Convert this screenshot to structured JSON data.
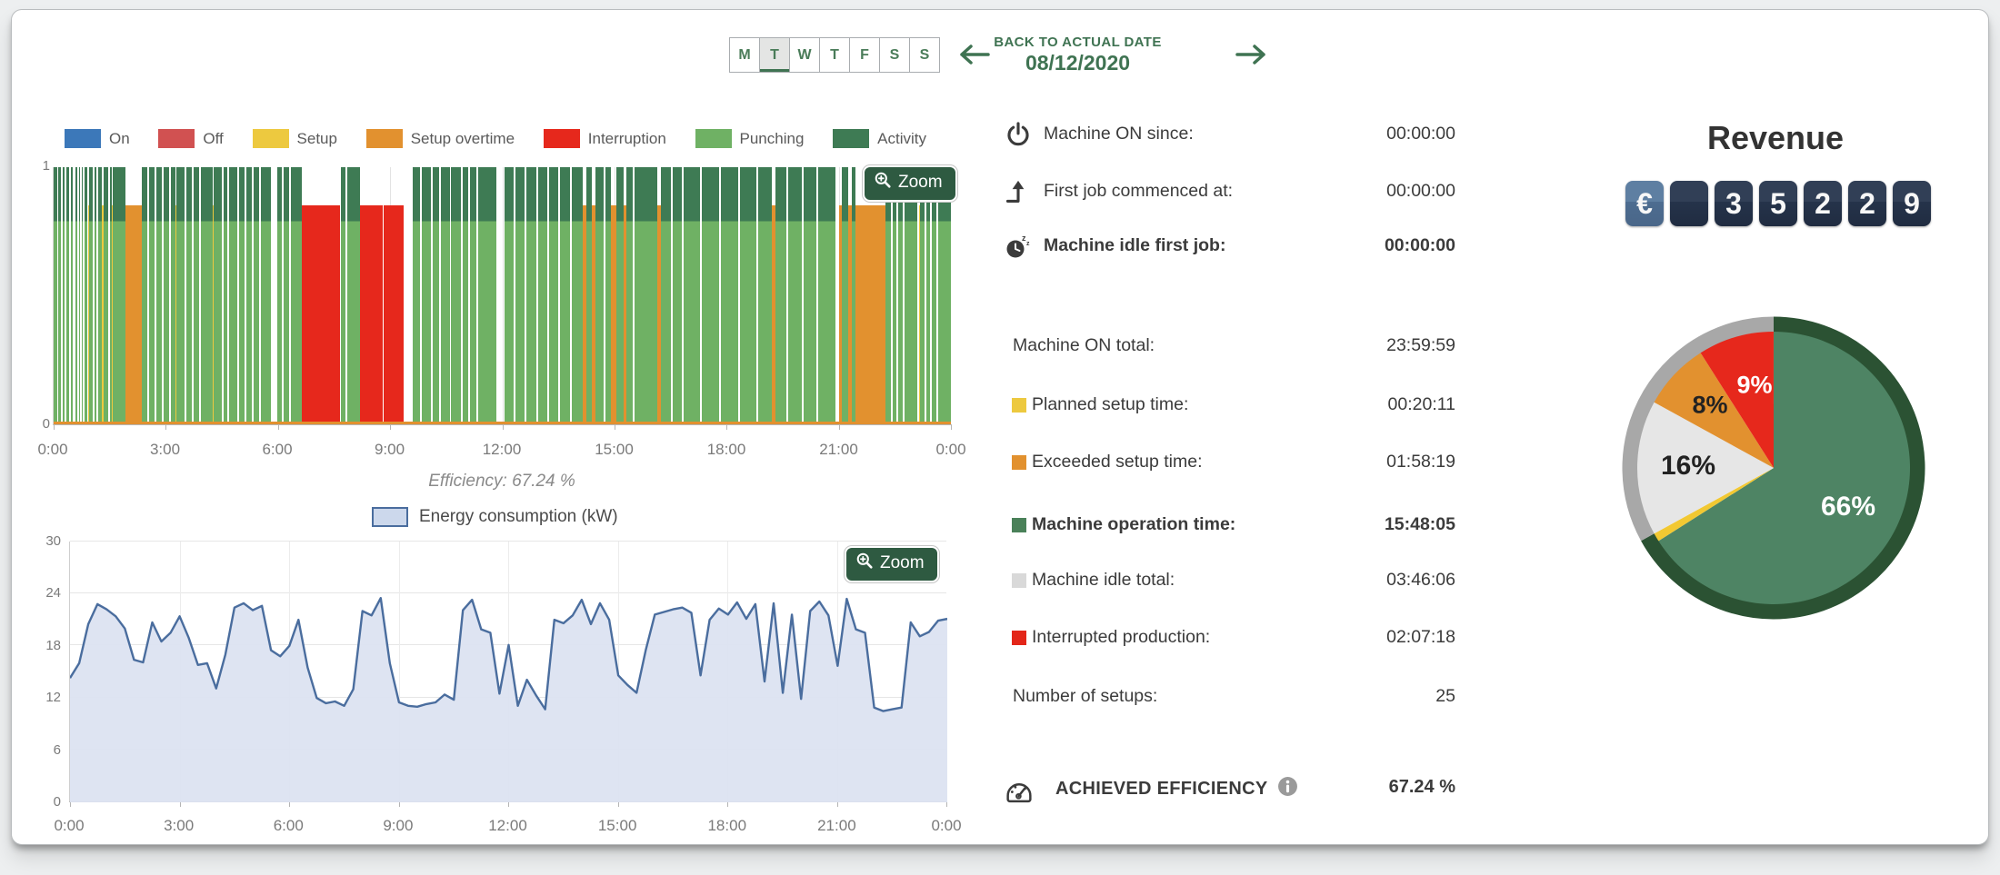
{
  "header": {
    "days": [
      "M",
      "T",
      "W",
      "T",
      "F",
      "S",
      "S"
    ],
    "active_day_index": 1,
    "back_to_actual": "BACK TO ACTUAL DATE",
    "date": "08/12/2020"
  },
  "timeline": {
    "zoom_label": "Zoom",
    "efficiency_caption": "Efficiency: 67.24 %"
  },
  "energy": {
    "zoom_label": "Zoom",
    "legend_label": "Energy consumption (kW)"
  },
  "stats": {
    "rows": [
      {
        "icon": "power-icon",
        "label": "Machine ON since:",
        "value": "00:00:00",
        "bold": false
      },
      {
        "icon": "first-job-icon",
        "label": "First job commenced at:",
        "value": "00:00:00",
        "bold": false
      },
      {
        "icon": "idle-clock-icon",
        "label": "Machine idle first job:",
        "value": "00:00:00",
        "bold": true
      },
      {
        "label": "Machine ON total:",
        "value": "23:59:59",
        "bold": false
      },
      {
        "swatch": "#edc93f",
        "label": "Planned setup time:",
        "value": "00:20:11",
        "bold": false
      },
      {
        "swatch": "#e2912f",
        "label": "Exceeded setup time:",
        "value": "01:58:19",
        "bold": false
      },
      {
        "swatch": "#4a8159",
        "label": "Machine operation time:",
        "value": "15:48:05",
        "bold": true
      },
      {
        "swatch": "#d9d9d9",
        "label": "Machine idle total:",
        "value": "03:46:06",
        "bold": false
      },
      {
        "swatch": "#e32619",
        "label": "Interrupted production:",
        "value": "02:07:18",
        "bold": false
      },
      {
        "label": "Number of setups:",
        "value": "25",
        "bold": false
      }
    ],
    "efficiency": {
      "label": "ACHIEVED EFFICIENCY",
      "value": "67.24 %"
    }
  },
  "revenue": {
    "title": "Revenue",
    "counter": [
      "€",
      "",
      "3",
      "5",
      "2",
      "2",
      "9"
    ]
  },
  "chart_data": [
    {
      "id": "machine-state-timeline",
      "type": "timeline-bar",
      "x_ticks": [
        "0:00",
        "3:00",
        "6:00",
        "9:00",
        "12:00",
        "15:00",
        "18:00",
        "21:00",
        "0:00"
      ],
      "x_range_hours": [
        0,
        24
      ],
      "y_ticks": [
        "1",
        "0"
      ],
      "legend": [
        {
          "label": "On",
          "color": "#3c78b9"
        },
        {
          "label": "Off",
          "color": "#d15151"
        },
        {
          "label": "Setup",
          "color": "#edc93f"
        },
        {
          "label": "Setup overtime",
          "color": "#e2912f"
        },
        {
          "label": "Interruption",
          "color": "#e6281c"
        },
        {
          "label": "Punching",
          "color": "#6fb164"
        },
        {
          "label": "Activity",
          "color": "#3e7b54"
        }
      ],
      "segment_kinds": {
        "g": "punching+activity",
        "r": "interruption",
        "o": "setup-overtime",
        "y": "setup",
        "w": "idle-gap"
      },
      "segments": [
        [
          0.0,
          0.1,
          "g"
        ],
        [
          0.1,
          0.13,
          "w"
        ],
        [
          0.13,
          0.55,
          "g"
        ],
        [
          0.55,
          0.58,
          "w"
        ],
        [
          0.58,
          0.9,
          "g"
        ],
        [
          0.9,
          0.93,
          "w"
        ],
        [
          0.93,
          0.96,
          "y"
        ],
        [
          0.96,
          1.3,
          "g"
        ],
        [
          1.3,
          1.33,
          "y"
        ],
        [
          1.33,
          1.55,
          "g"
        ],
        [
          1.55,
          1.58,
          "y"
        ],
        [
          1.58,
          1.93,
          "g"
        ],
        [
          1.93,
          2.35,
          "o"
        ],
        [
          2.35,
          3.25,
          "g"
        ],
        [
          3.25,
          3.28,
          "y"
        ],
        [
          3.28,
          4.25,
          "g"
        ],
        [
          4.25,
          4.28,
          "y"
        ],
        [
          4.28,
          5.8,
          "g"
        ],
        [
          5.8,
          5.97,
          "w"
        ],
        [
          5.97,
          6.65,
          "g"
        ],
        [
          6.65,
          7.65,
          "r"
        ],
        [
          7.65,
          7.68,
          "w"
        ],
        [
          7.68,
          8.2,
          "g"
        ],
        [
          8.2,
          8.8,
          "r"
        ],
        [
          8.8,
          8.83,
          "w"
        ],
        [
          8.83,
          9.35,
          "r"
        ],
        [
          9.35,
          9.6,
          "w"
        ],
        [
          9.6,
          10.6,
          "g"
        ],
        [
          10.6,
          10.63,
          "w"
        ],
        [
          10.63,
          11.85,
          "g"
        ],
        [
          11.85,
          12.05,
          "w"
        ],
        [
          12.05,
          14.15,
          "g"
        ],
        [
          14.15,
          14.25,
          "o"
        ],
        [
          14.25,
          14.4,
          "g"
        ],
        [
          14.4,
          14.5,
          "o"
        ],
        [
          14.5,
          14.9,
          "g"
        ],
        [
          14.9,
          15.05,
          "o"
        ],
        [
          15.05,
          15.25,
          "g"
        ],
        [
          15.25,
          15.32,
          "o"
        ],
        [
          15.32,
          16.15,
          "g"
        ],
        [
          16.15,
          16.25,
          "o"
        ],
        [
          16.25,
          19.2,
          "g"
        ],
        [
          19.2,
          19.3,
          "o"
        ],
        [
          19.3,
          20.9,
          "g"
        ],
        [
          20.9,
          21.0,
          "w"
        ],
        [
          21.0,
          21.08,
          "o"
        ],
        [
          21.08,
          21.25,
          "g"
        ],
        [
          21.25,
          21.35,
          "o"
        ],
        [
          21.35,
          21.45,
          "g"
        ],
        [
          21.45,
          22.25,
          "o"
        ],
        [
          22.25,
          22.55,
          "g"
        ],
        [
          22.55,
          22.58,
          "w"
        ],
        [
          22.58,
          23.1,
          "g"
        ],
        [
          23.1,
          23.15,
          "w"
        ],
        [
          23.15,
          23.18,
          "y"
        ],
        [
          23.18,
          23.45,
          "g"
        ],
        [
          23.45,
          23.48,
          "w"
        ],
        [
          23.48,
          24.0,
          "g"
        ]
      ],
      "gap_lines_hours": [
        0.2,
        0.3,
        0.42,
        0.5,
        0.63,
        0.7,
        0.78,
        1.05,
        1.15,
        1.45,
        2.5,
        2.7,
        2.9,
        3.1,
        3.5,
        3.7,
        3.9,
        4.5,
        4.65,
        4.9,
        5.1,
        5.3,
        5.5,
        6.1,
        6.3,
        7.8,
        9.8,
        10.1,
        10.3,
        10.9,
        11.1,
        11.3,
        12.3,
        12.6,
        12.9,
        13.2,
        13.5,
        13.8,
        14.7,
        15.5,
        16.5,
        16.8,
        17.3,
        17.8,
        18.3,
        18.8,
        19.6,
        20.0,
        20.4,
        22.4,
        22.7,
        23.3,
        23.6
      ]
    },
    {
      "id": "energy-consumption",
      "type": "area",
      "series": [
        {
          "name": "Energy consumption (kW)",
          "x_start_hour": 0,
          "x_step_hours": 0.25,
          "values": [
            14.3,
            16.0,
            20.5,
            22.8,
            22.2,
            21.4,
            20.0,
            16.4,
            16.1,
            20.7,
            18.5,
            19.5,
            21.4,
            18.9,
            15.8,
            16.0,
            13.1,
            17.0,
            22.4,
            22.9,
            22.1,
            22.6,
            17.5,
            16.8,
            18.0,
            21.0,
            15.5,
            12.0,
            11.4,
            11.6,
            11.1,
            13.0,
            22.0,
            21.5,
            23.5,
            16.0,
            11.5,
            11.1,
            11.0,
            11.3,
            11.5,
            12.4,
            11.8,
            22.1,
            23.3,
            19.9,
            19.5,
            12.5,
            18.1,
            11.1,
            14.1,
            12.3,
            10.7,
            21.0,
            20.6,
            21.5,
            23.3,
            20.5,
            22.9,
            21.0,
            14.6,
            13.5,
            12.6,
            17.5,
            21.6,
            21.9,
            22.2,
            22.4,
            21.8,
            14.6,
            21.0,
            22.3,
            21.6,
            23.0,
            21.1,
            22.8,
            13.9,
            22.9,
            12.6,
            21.6,
            11.9,
            22.0,
            23.1,
            21.5,
            15.7,
            23.4,
            19.9,
            19.5,
            10.9,
            10.5,
            10.7,
            10.9,
            20.7,
            19.1,
            19.6,
            20.9,
            21.1
          ]
        }
      ],
      "ylim": [
        0,
        30
      ],
      "y_ticks": [
        0,
        6,
        12,
        18,
        24,
        30
      ],
      "x_ticks": [
        "0:00",
        "3:00",
        "6:00",
        "9:00",
        "12:00",
        "15:00",
        "18:00",
        "21:00",
        "0:00"
      ],
      "line_color": "#4a6d9e",
      "fill_color": "#dce3f1"
    },
    {
      "id": "revenue-breakdown-pie",
      "type": "pie",
      "slices": [
        {
          "pct": 66,
          "label": "66%",
          "color": "#4e8464",
          "label_color": "#ffffff"
        },
        {
          "pct": 1,
          "label": "",
          "color": "#f2c832",
          "label_color": ""
        },
        {
          "pct": 16,
          "label": "16%",
          "color": "#e6e6e6",
          "label_color": "#222222"
        },
        {
          "pct": 8,
          "label": "8%",
          "color": "#e2912f",
          "label_color": "#222222"
        },
        {
          "pct": 9,
          "label": "9%",
          "color": "#e6281c",
          "label_color": "#ffffff"
        }
      ],
      "outer_ring": [
        {
          "pct": 67,
          "color": "#2b5233"
        },
        {
          "pct": 33,
          "color": "#a8a8a8"
        }
      ]
    }
  ]
}
